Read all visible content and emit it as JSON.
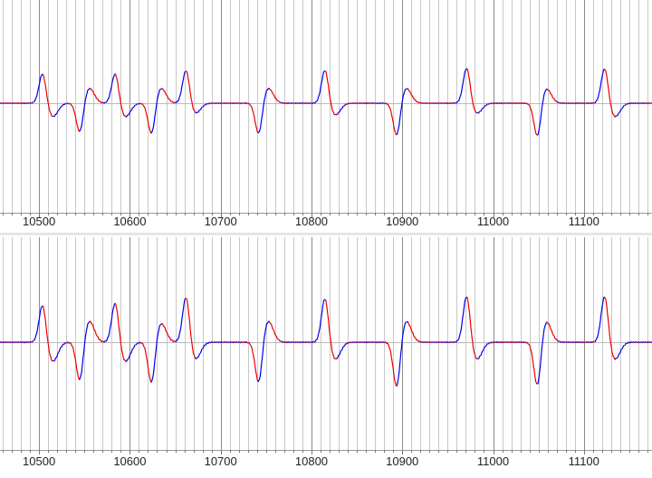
{
  "chart_data": [
    {
      "type": "line",
      "title": "",
      "xlabel": "",
      "ylabel": "",
      "xlim": [
        10457,
        11175
      ],
      "ylim": [
        -1.3,
        1.3
      ],
      "x_ticks": [
        10500,
        10600,
        10700,
        10800,
        10900,
        11000,
        11100
      ],
      "x_tick_labels": [
        "10500",
        "10600",
        "10700",
        "10800",
        "10900",
        "11000",
        "11100"
      ],
      "minor_grid_step": 10,
      "grid": true,
      "baseline": 0,
      "peaks": [
        {
          "x": 10504,
          "y": 0.9
        },
        {
          "x": 10515,
          "y": -0.4
        },
        {
          "x": 10545,
          "y": -0.9
        },
        {
          "x": 10555,
          "y": 0.45
        },
        {
          "x": 10584,
          "y": 0.9
        },
        {
          "x": 10595,
          "y": -0.4
        },
        {
          "x": 10624,
          "y": -0.95
        },
        {
          "x": 10634,
          "y": 0.45
        },
        {
          "x": 10662,
          "y": 1.0
        },
        {
          "x": 10672,
          "y": -0.3
        },
        {
          "x": 10742,
          "y": -0.95
        },
        {
          "x": 10752,
          "y": 0.45
        },
        {
          "x": 10815,
          "y": 1.0
        },
        {
          "x": 10826,
          "y": -0.35
        },
        {
          "x": 10894,
          "y": -1.0
        },
        {
          "x": 10904,
          "y": 0.45
        },
        {
          "x": 10971,
          "y": 1.05
        },
        {
          "x": 10982,
          "y": -0.3
        },
        {
          "x": 11049,
          "y": -1.05
        },
        {
          "x": 11058,
          "y": 0.45
        },
        {
          "x": 11123,
          "y": 1.05
        },
        {
          "x": 11134,
          "y": -0.4
        }
      ],
      "colors": {
        "rising": "#0000ee",
        "falling": "#ee0000",
        "grid_major": "#8a8a8a",
        "grid_minor": "#c8c8c8",
        "baseline": "#bbbbbb"
      }
    },
    {
      "type": "line",
      "title": "",
      "xlabel": "",
      "ylabel": "",
      "xlim": [
        10457,
        11175
      ],
      "ylim": [
        -1.3,
        1.3
      ],
      "x_ticks": [
        10500,
        10600,
        10700,
        10800,
        10900,
        11000,
        11100
      ],
      "x_tick_labels": [
        "10500",
        "10600",
        "10700",
        "10800",
        "10900",
        "11000",
        "11100"
      ],
      "minor_grid_step": 10,
      "grid": true,
      "baseline": 0,
      "peaks": [
        {
          "x": 10504,
          "y": 0.9
        },
        {
          "x": 10515,
          "y": -0.45
        },
        {
          "x": 10545,
          "y": -0.95
        },
        {
          "x": 10555,
          "y": 0.5
        },
        {
          "x": 10584,
          "y": 0.95
        },
        {
          "x": 10595,
          "y": -0.45
        },
        {
          "x": 10624,
          "y": -1.0
        },
        {
          "x": 10634,
          "y": 0.45
        },
        {
          "x": 10662,
          "y": 1.1
        },
        {
          "x": 10672,
          "y": -0.4
        },
        {
          "x": 10742,
          "y": -1.0
        },
        {
          "x": 10752,
          "y": 0.5
        },
        {
          "x": 10815,
          "y": 1.05
        },
        {
          "x": 10826,
          "y": -0.4
        },
        {
          "x": 10894,
          "y": -1.1
        },
        {
          "x": 10904,
          "y": 0.5
        },
        {
          "x": 10971,
          "y": 1.1
        },
        {
          "x": 10982,
          "y": -0.4
        },
        {
          "x": 11049,
          "y": -1.1
        },
        {
          "x": 11058,
          "y": 0.5
        },
        {
          "x": 11123,
          "y": 1.1
        },
        {
          "x": 11134,
          "y": -0.4
        }
      ],
      "colors": {
        "rising": "#0000ee",
        "falling": "#ee0000",
        "grid_major": "#8a8a8a",
        "grid_minor": "#c8c8c8",
        "baseline": "#bbbbbb"
      }
    }
  ]
}
